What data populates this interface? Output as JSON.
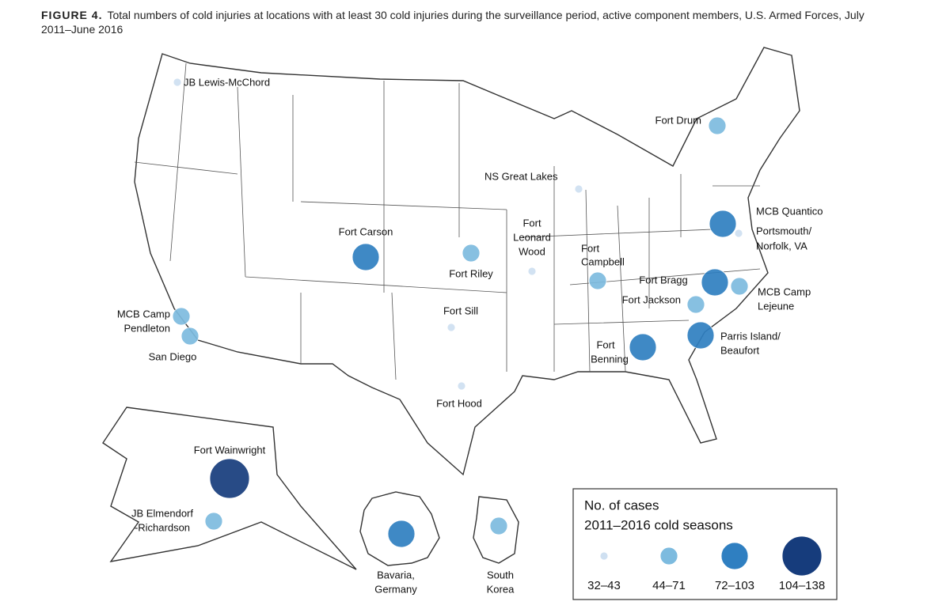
{
  "title_label": "FIGURE 4.",
  "title": "Total numbers of cold injuries at locations with at least 30 cold injuries during the surveillance period, active component members, U.S. Armed Forces, July 2011–June 2016",
  "legend": {
    "title": [
      "No. of cases",
      "2011–2016 cold seasons"
    ],
    "items": [
      {
        "label": "32–43",
        "color": "#cfe0f1"
      },
      {
        "label": "44–71",
        "color": "#7dbbdf"
      },
      {
        "label": "72–103",
        "color": "#2f7fc1"
      },
      {
        "label": "104–138",
        "color": "#163c7c"
      }
    ]
  },
  "locations": [
    {
      "name": [
        "JB Lewis-McChord"
      ],
      "cases": "32–43"
    },
    {
      "name": [
        "Fort Drum"
      ],
      "cases": "44–71"
    },
    {
      "name": [
        "NS Great Lakes"
      ],
      "cases": "32–43"
    },
    {
      "name": [
        "MCB Quantico"
      ],
      "cases": "72–103"
    },
    {
      "name": [
        "Portsmouth/",
        "Norfolk, VA"
      ],
      "cases": "32–43"
    },
    {
      "name": [
        "Fort Carson"
      ],
      "cases": "72–103"
    },
    {
      "name": [
        "Fort Riley"
      ],
      "cases": "44–71"
    },
    {
      "name": [
        "Fort",
        "Leonard",
        "Wood"
      ],
      "cases": "32–43"
    },
    {
      "name": [
        "Fort",
        "Campbell"
      ],
      "cases": "44–71"
    },
    {
      "name": [
        "Fort Bragg"
      ],
      "cases": "72–103"
    },
    {
      "name": [
        "MCB Camp",
        "Lejeune"
      ],
      "cases": "44–71"
    },
    {
      "name": [
        "Fort Jackson"
      ],
      "cases": "44–71"
    },
    {
      "name": [
        "MCB Camp",
        "Pendleton"
      ],
      "cases": "44–71"
    },
    {
      "name": [
        "San Diego"
      ],
      "cases": "44–71"
    },
    {
      "name": [
        "Fort Sill"
      ],
      "cases": "32–43"
    },
    {
      "name": [
        "Parris Island/",
        "Beaufort"
      ],
      "cases": "72–103"
    },
    {
      "name": [
        "Fort",
        "Benning"
      ],
      "cases": "72–103"
    },
    {
      "name": [
        "Fort Hood"
      ],
      "cases": "32–43"
    },
    {
      "name": [
        "Fort Wainwright"
      ],
      "cases": "104–138"
    },
    {
      "name": [
        "JB Elmendorf",
        "-Richardson"
      ],
      "cases": "44–71"
    },
    {
      "name": [
        "Bavaria,",
        "Germany"
      ],
      "cases": "72–103"
    },
    {
      "name": [
        "South",
        "Korea"
      ],
      "cases": "44–71"
    }
  ]
}
